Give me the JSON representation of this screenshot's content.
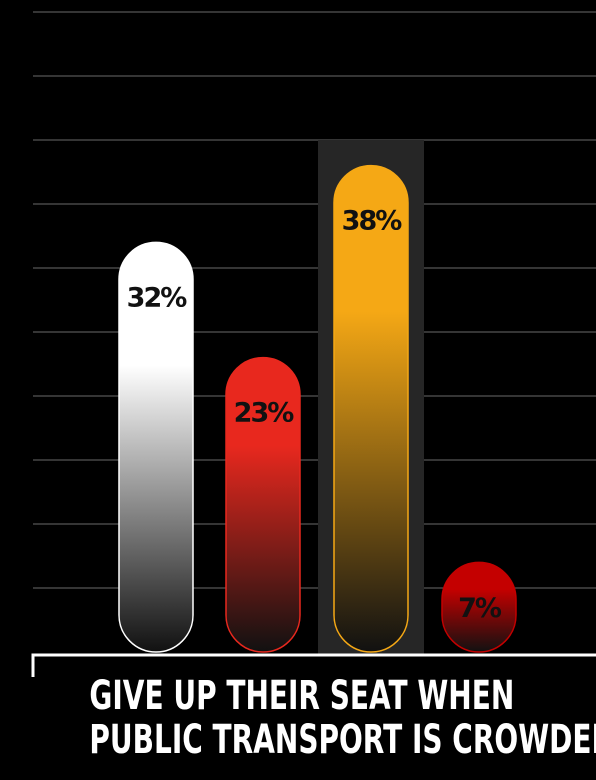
{
  "chart_data": {
    "type": "bar",
    "categories": [
      "",
      "",
      "",
      ""
    ],
    "values": [
      32,
      23,
      38,
      7
    ],
    "value_labels": [
      "32%",
      "23%",
      "38%",
      "7%"
    ],
    "ylim": [
      0,
      50
    ],
    "grid": true,
    "highlighted_index": 2,
    "colors": [
      "#ffffff",
      "#e8281e",
      "#f5a815",
      "#c40000"
    ],
    "label_colors": [
      "#111111",
      "#111111",
      "#111111",
      "#111111"
    ],
    "title": ""
  },
  "caption": {
    "line1": "GIVE UP THEIR SEAT WHEN",
    "line2": "PUBLIC TRANSPORT IS CROWDED"
  }
}
